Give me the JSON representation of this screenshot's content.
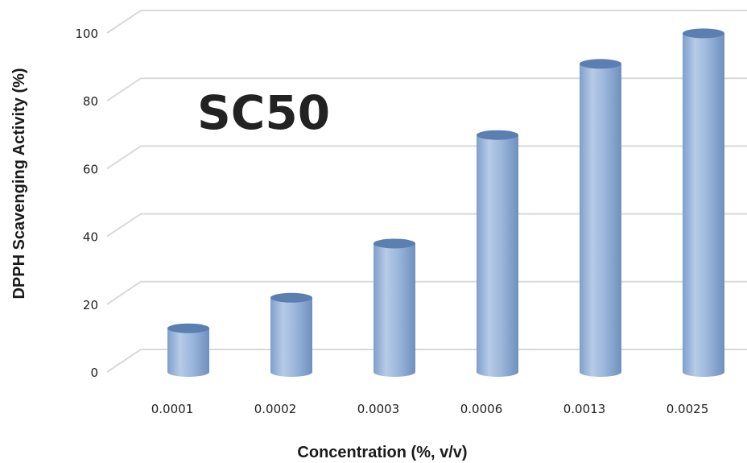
{
  "chart_data": {
    "type": "bar",
    "style": "3d-cylinder",
    "title": "",
    "annotation": "SC50",
    "xlabel": "Concentration (%, v/v)",
    "ylabel": "DPPH Scavenging Activity (%)",
    "categories": [
      "0.0001",
      "0.0002",
      "0.0003",
      "0.0006",
      "0.0013",
      "0.0025"
    ],
    "values": [
      11,
      20,
      36,
      68,
      89,
      98
    ],
    "ylim": [
      0,
      100
    ],
    "yticks": [
      0,
      20,
      40,
      60,
      80,
      100
    ],
    "grid": true,
    "legend": "none",
    "colors": {
      "bar": "#95b3d7",
      "bar_dark": "#6c8ebf",
      "bar_top": "#5b7fb1",
      "grid": "#d9d9d9"
    }
  }
}
